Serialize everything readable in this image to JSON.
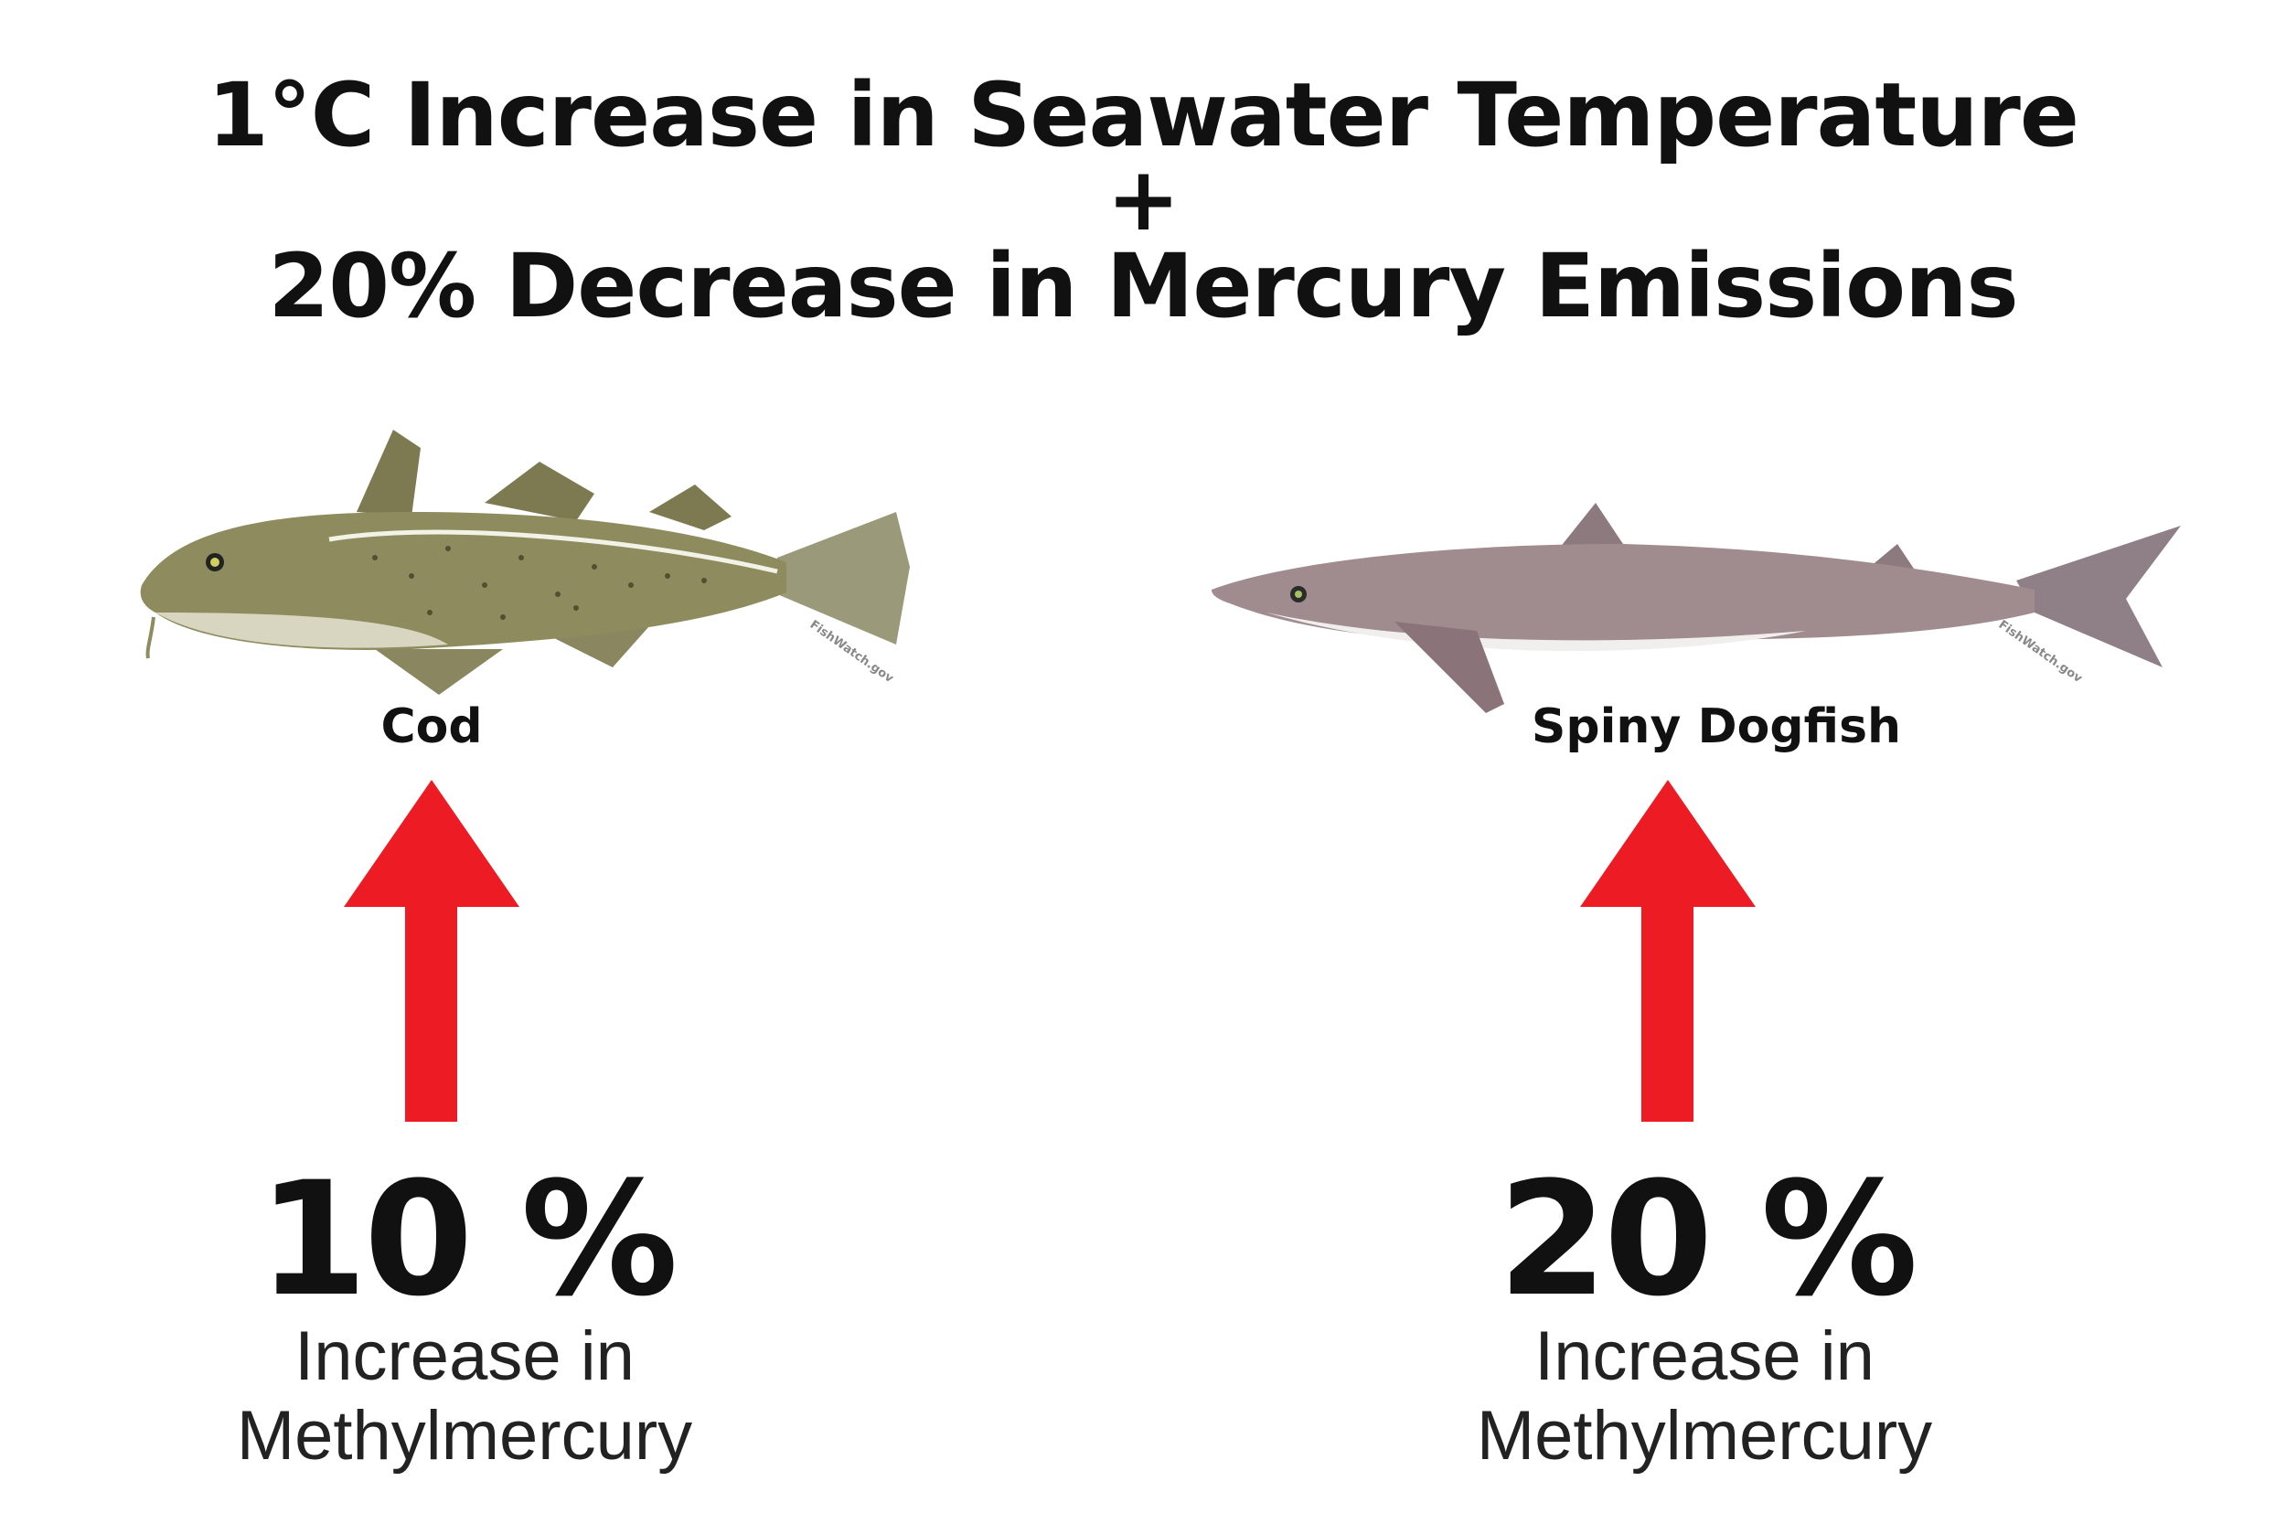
{
  "title": {
    "line1": "1°C Increase in Seawater Temperature",
    "plus": "+",
    "line2": "20% Decrease in Mercury Emissions"
  },
  "fish": [
    {
      "name": "Cod",
      "change": "10 %",
      "desc_line1": "Increase in",
      "desc_line2": "Methylmercury",
      "watermark": "FishWatch.gov"
    },
    {
      "name": "Spiny Dogfish",
      "change": "20 %",
      "desc_line1": "Increase in",
      "desc_line2": "Methylmercury",
      "watermark": "FishWatch.gov"
    }
  ],
  "colors": {
    "arrow": "#ed1c24",
    "cod": "#8a8a5c",
    "dogfish": "#9c8a8c"
  }
}
